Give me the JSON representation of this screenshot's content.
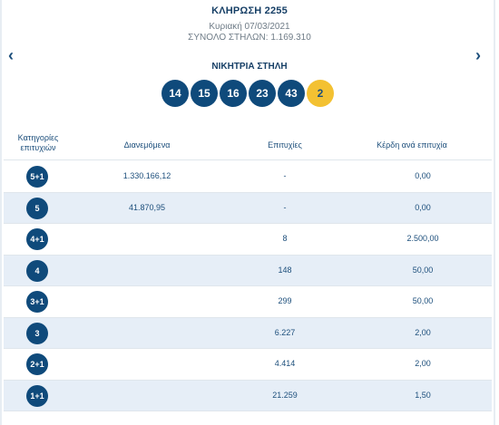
{
  "header": {
    "draw_title": "ΚΛΗΡΩΣΗ 2255",
    "draw_date": "Κυριακή 07/03/2021",
    "total_columns": "ΣΥΝΟΛΟ ΣΤΗΛΩΝ: 1.169.310"
  },
  "nav": {
    "prev_icon": "chevron-left-icon",
    "next_icon": "chevron-right-icon",
    "prev_glyph": "‹",
    "next_glyph": "›"
  },
  "winning": {
    "title": "ΝΙΚΗΤΡΙΑ ΣΤΗΛΗ",
    "numbers": [
      "14",
      "15",
      "16",
      "23",
      "43"
    ],
    "joker": "2"
  },
  "colors": {
    "ball": "#0f4a7b",
    "joker": "#f3c132",
    "row_alt": "#e6eef7",
    "text": "#1d4f7c"
  },
  "table": {
    "headers": {
      "category": "Κατηγορίες επιτυχιών",
      "distributed": "Διανεμόμενα",
      "winners": "Επιτυχίες",
      "prize": "Κέρδη ανά επιτυχία"
    },
    "rows": [
      {
        "category": "5+1",
        "distributed": "1.330.166,12",
        "winners": "-",
        "prize": "0,00"
      },
      {
        "category": "5",
        "distributed": "41.870,95",
        "winners": "-",
        "prize": "0,00"
      },
      {
        "category": "4+1",
        "distributed": "",
        "winners": "8",
        "prize": "2.500,00"
      },
      {
        "category": "4",
        "distributed": "",
        "winners": "148",
        "prize": "50,00"
      },
      {
        "category": "3+1",
        "distributed": "",
        "winners": "299",
        "prize": "50,00"
      },
      {
        "category": "3",
        "distributed": "",
        "winners": "6.227",
        "prize": "2,00"
      },
      {
        "category": "2+1",
        "distributed": "",
        "winners": "4.414",
        "prize": "2,00"
      },
      {
        "category": "1+1",
        "distributed": "",
        "winners": "21.259",
        "prize": "1,50"
      }
    ]
  }
}
